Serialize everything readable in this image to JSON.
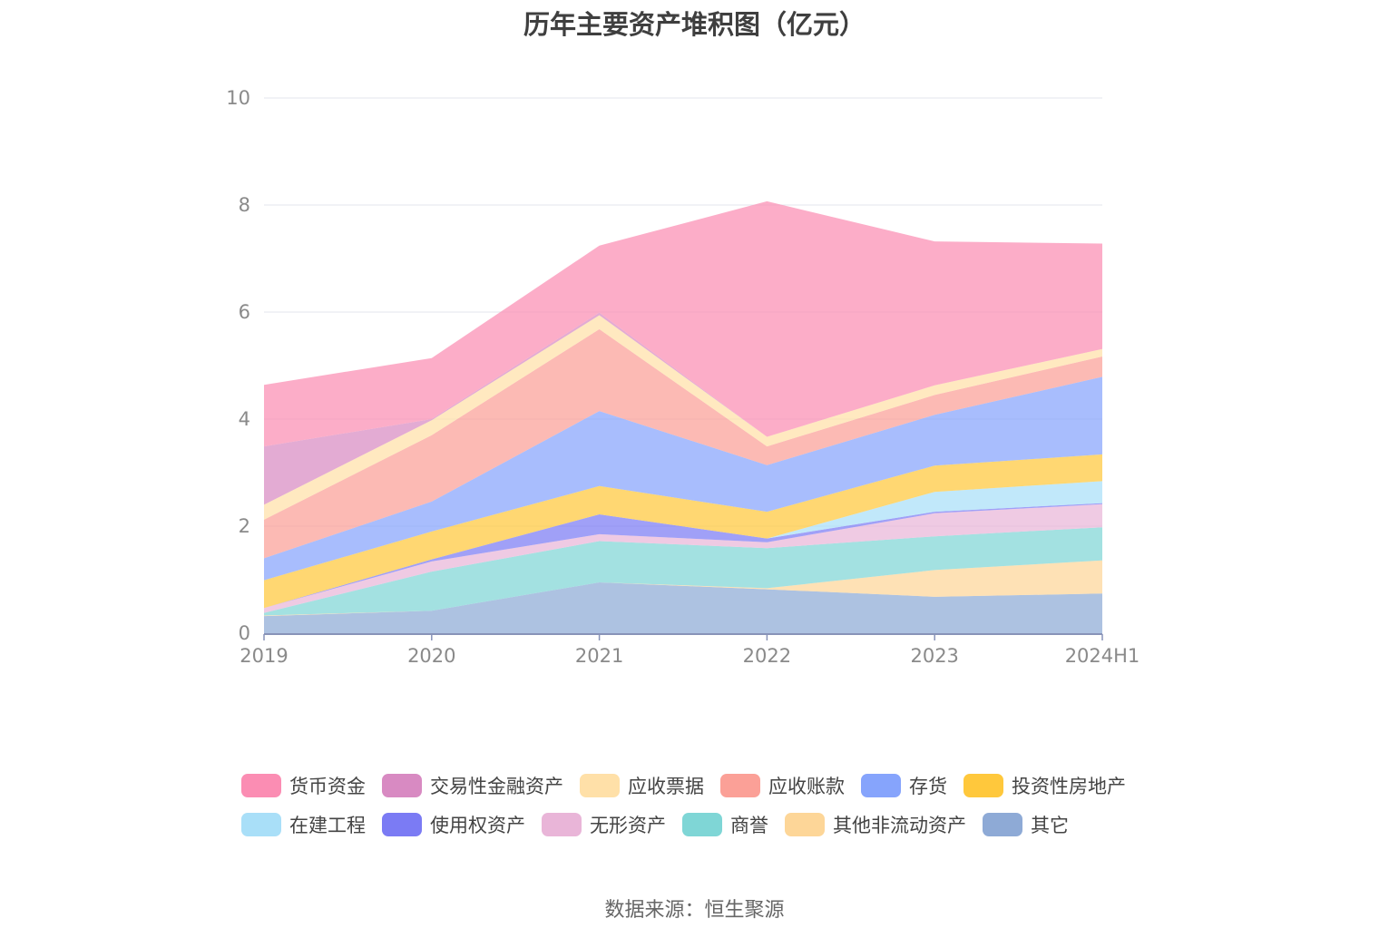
{
  "chart_data": {
    "type": "area",
    "stacked": true,
    "title": "历年主要资产堆积图（亿元）",
    "categories": [
      "2019",
      "2020",
      "2021",
      "2022",
      "2023",
      "2024H1"
    ],
    "yticks": [
      "0",
      "2",
      "4",
      "6",
      "8",
      "10"
    ],
    "ylim": [
      0,
      10
    ],
    "series": [
      {
        "name": "其它",
        "color": "#8eaad6",
        "values": [
          0.32,
          0.42,
          0.95,
          0.82,
          0.68,
          0.74
        ]
      },
      {
        "name": "其他非流动资产",
        "color": "#fdd698",
        "values": [
          0.01,
          0.0,
          0.0,
          0.02,
          0.5,
          0.62
        ]
      },
      {
        "name": "商誉",
        "color": "#7fd6d6",
        "values": [
          0.05,
          0.73,
          0.77,
          0.75,
          0.63,
          0.62
        ]
      },
      {
        "name": "无形资产",
        "color": "#e9b5d8",
        "values": [
          0.09,
          0.19,
          0.13,
          0.11,
          0.43,
          0.43
        ]
      },
      {
        "name": "使用权资产",
        "color": "#7b7bf4",
        "values": [
          0.0,
          0.04,
          0.37,
          0.07,
          0.03,
          0.02
        ]
      },
      {
        "name": "在建工程",
        "color": "#a9dff8",
        "values": [
          0.0,
          0.0,
          0.0,
          0.0,
          0.37,
          0.41
        ]
      },
      {
        "name": "投资性房地产",
        "color": "#ffc83c",
        "values": [
          0.52,
          0.52,
          0.53,
          0.5,
          0.49,
          0.5
        ]
      },
      {
        "name": "存货",
        "color": "#86a4fc",
        "values": [
          0.41,
          0.56,
          1.4,
          0.87,
          0.95,
          1.45
        ]
      },
      {
        "name": "应收账款",
        "color": "#fba097",
        "values": [
          0.72,
          1.24,
          1.53,
          0.35,
          0.37,
          0.38
        ]
      },
      {
        "name": "应收票据",
        "color": "#ffe0a8",
        "values": [
          0.28,
          0.28,
          0.26,
          0.18,
          0.18,
          0.14
        ]
      },
      {
        "name": "交易性金融资产",
        "color": "#d88ac2",
        "values": [
          1.09,
          0.02,
          0.05,
          0.0,
          0.0,
          0.0
        ]
      },
      {
        "name": "货币资金",
        "color": "#fb8db3",
        "values": [
          1.15,
          1.14,
          1.25,
          4.4,
          2.69,
          1.97
        ]
      }
    ],
    "legend_order": [
      "货币资金",
      "交易性金融资产",
      "应收票据",
      "应收账款",
      "存货",
      "投资性房地产",
      "在建工程",
      "使用权资产",
      "无形资产",
      "商誉",
      "其他非流动资产",
      "其它"
    ]
  },
  "source_text": "数据来源：恒生聚源"
}
